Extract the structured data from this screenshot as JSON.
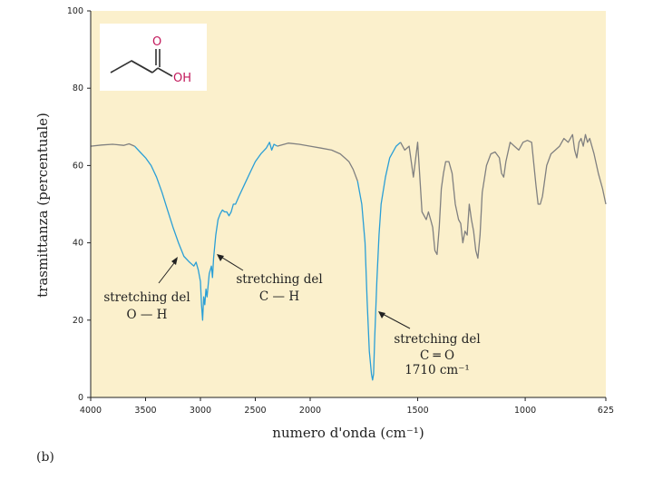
{
  "chart_data": {
    "type": "line",
    "title": "",
    "panel_label": "(b)",
    "xlabel": "numero d'onda (cm⁻¹)",
    "ylabel": "trasmittanza (percentuale)",
    "xlim": [
      4000,
      625
    ],
    "ylim": [
      0,
      100
    ],
    "x_axis_reversed": true,
    "x_axis_piecewise_scale": {
      "high_range": [
        4000,
        2000
      ],
      "low_range": [
        2000,
        625
      ],
      "break": 2000
    },
    "x_ticks": [
      4000,
      3500,
      3000,
      2500,
      2000,
      1500,
      1000,
      625
    ],
    "y_ticks": [
      0,
      20,
      40,
      60,
      80,
      100
    ],
    "grid": false,
    "background_color": "#fbf0cc",
    "series": [
      {
        "color_default": "#808080",
        "color_highlight": "#2a9fd6",
        "highlight_ranges": [
          [
            3600,
            2330
          ],
          [
            1780,
            1600
          ]
        ],
        "points": [
          [
            4000,
            65
          ],
          [
            3900,
            65.3
          ],
          [
            3800,
            65.5
          ],
          [
            3700,
            65.2
          ],
          [
            3650,
            65.6
          ],
          [
            3600,
            65
          ],
          [
            3550,
            63.5
          ],
          [
            3500,
            62
          ],
          [
            3450,
            60
          ],
          [
            3400,
            57
          ],
          [
            3350,
            53
          ],
          [
            3300,
            48.5
          ],
          [
            3250,
            44
          ],
          [
            3200,
            40
          ],
          [
            3150,
            36.5
          ],
          [
            3100,
            35
          ],
          [
            3060,
            34
          ],
          [
            3040,
            35
          ],
          [
            3020,
            33
          ],
          [
            3000,
            30
          ],
          [
            2990,
            24
          ],
          [
            2980,
            20
          ],
          [
            2970,
            26
          ],
          [
            2960,
            24
          ],
          [
            2950,
            28
          ],
          [
            2940,
            26
          ],
          [
            2920,
            32
          ],
          [
            2900,
            34
          ],
          [
            2890,
            31
          ],
          [
            2880,
            36
          ],
          [
            2860,
            42
          ],
          [
            2840,
            46
          ],
          [
            2820,
            47.5
          ],
          [
            2800,
            48.5
          ],
          [
            2780,
            48
          ],
          [
            2760,
            48
          ],
          [
            2740,
            47
          ],
          [
            2720,
            48
          ],
          [
            2700,
            50
          ],
          [
            2680,
            50
          ],
          [
            2650,
            52
          ],
          [
            2600,
            55
          ],
          [
            2550,
            58
          ],
          [
            2500,
            61
          ],
          [
            2450,
            63
          ],
          [
            2400,
            64.5
          ],
          [
            2370,
            66
          ],
          [
            2350,
            64
          ],
          [
            2330,
            65.5
          ],
          [
            2300,
            65
          ],
          [
            2200,
            65.8
          ],
          [
            2100,
            65.5
          ],
          [
            2000,
            65
          ],
          [
            1950,
            64.5
          ],
          [
            1900,
            64
          ],
          [
            1860,
            63
          ],
          [
            1820,
            61
          ],
          [
            1800,
            59
          ],
          [
            1780,
            56
          ],
          [
            1760,
            50
          ],
          [
            1745,
            40
          ],
          [
            1735,
            25
          ],
          [
            1725,
            12
          ],
          [
            1715,
            6
          ],
          [
            1710,
            4.5
          ],
          [
            1705,
            6
          ],
          [
            1700,
            15
          ],
          [
            1690,
            30
          ],
          [
            1680,
            42
          ],
          [
            1670,
            50
          ],
          [
            1650,
            57
          ],
          [
            1630,
            62
          ],
          [
            1600,
            65
          ],
          [
            1580,
            66
          ],
          [
            1560,
            64
          ],
          [
            1540,
            65
          ],
          [
            1520,
            57
          ],
          [
            1500,
            66
          ],
          [
            1480,
            48
          ],
          [
            1460,
            46
          ],
          [
            1450,
            48
          ],
          [
            1440,
            46
          ],
          [
            1430,
            44
          ],
          [
            1420,
            38
          ],
          [
            1410,
            37
          ],
          [
            1400,
            44
          ],
          [
            1390,
            54
          ],
          [
            1380,
            58
          ],
          [
            1370,
            61
          ],
          [
            1355,
            61
          ],
          [
            1340,
            58
          ],
          [
            1325,
            50
          ],
          [
            1310,
            46
          ],
          [
            1300,
            45
          ],
          [
            1290,
            40
          ],
          [
            1280,
            43
          ],
          [
            1270,
            42
          ],
          [
            1260,
            50
          ],
          [
            1250,
            46
          ],
          [
            1240,
            43
          ],
          [
            1230,
            38
          ],
          [
            1220,
            36
          ],
          [
            1210,
            42
          ],
          [
            1200,
            53
          ],
          [
            1180,
            60
          ],
          [
            1160,
            63
          ],
          [
            1140,
            63.5
          ],
          [
            1120,
            62
          ],
          [
            1110,
            58
          ],
          [
            1100,
            57
          ],
          [
            1090,
            61
          ],
          [
            1070,
            66
          ],
          [
            1050,
            65
          ],
          [
            1030,
            64
          ],
          [
            1010,
            66
          ],
          [
            990,
            66.5
          ],
          [
            970,
            66
          ],
          [
            950,
            55
          ],
          [
            940,
            50
          ],
          [
            930,
            50
          ],
          [
            920,
            52
          ],
          [
            900,
            60
          ],
          [
            880,
            63
          ],
          [
            860,
            64
          ],
          [
            840,
            65
          ],
          [
            820,
            67
          ],
          [
            800,
            66
          ],
          [
            780,
            68
          ],
          [
            770,
            64
          ],
          [
            760,
            62
          ],
          [
            750,
            66
          ],
          [
            740,
            67
          ],
          [
            730,
            65
          ],
          [
            720,
            68
          ],
          [
            710,
            66
          ],
          [
            700,
            67
          ],
          [
            690,
            65
          ],
          [
            680,
            63
          ],
          [
            660,
            58
          ],
          [
            640,
            54
          ],
          [
            625,
            50
          ]
        ]
      }
    ],
    "annotations": [
      {
        "lines": [
          "stretching del",
          "O — H"
        ],
        "target": [
          3200,
          37
        ]
      },
      {
        "lines": [
          "stretching del",
          "C — H"
        ],
        "target": [
          2890,
          38
        ]
      },
      {
        "lines": [
          "stretching del",
          "C ═ O",
          "1710 cm⁻¹"
        ],
        "target": [
          1710,
          22
        ]
      }
    ],
    "inset_molecule": {
      "name": "butanoic acid",
      "labels": {
        "carbonyl_oxygen": "O",
        "hydroxyl": "OH"
      },
      "color": "#c2185b"
    }
  }
}
